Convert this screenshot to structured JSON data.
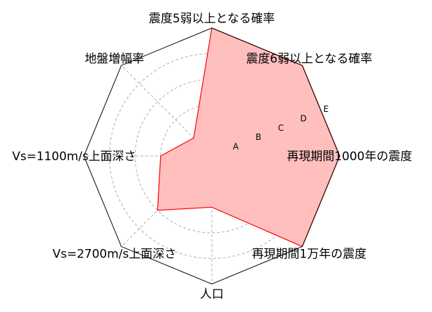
{
  "chart_data": {
    "type": "radar",
    "axes": [
      "震度5弱以上となる確率",
      "震度6弱以上となる確率",
      "再現期間1000年の震度",
      "再現期間1万年の震度",
      "人口",
      "Vs=2700m/s上面深さ",
      "Vs=1100m/s上面深さ",
      "地盤増幅率"
    ],
    "values": [
      5,
      5,
      5,
      5,
      2,
      3,
      2,
      1
    ],
    "rmax": 5,
    "rings": [
      1,
      2,
      3,
      4,
      5
    ],
    "tick_labels": [
      "A",
      "B",
      "C",
      "D",
      "E"
    ],
    "grid": true,
    "series_color": "#ff0000",
    "fill_color": "#ffbfbf"
  }
}
